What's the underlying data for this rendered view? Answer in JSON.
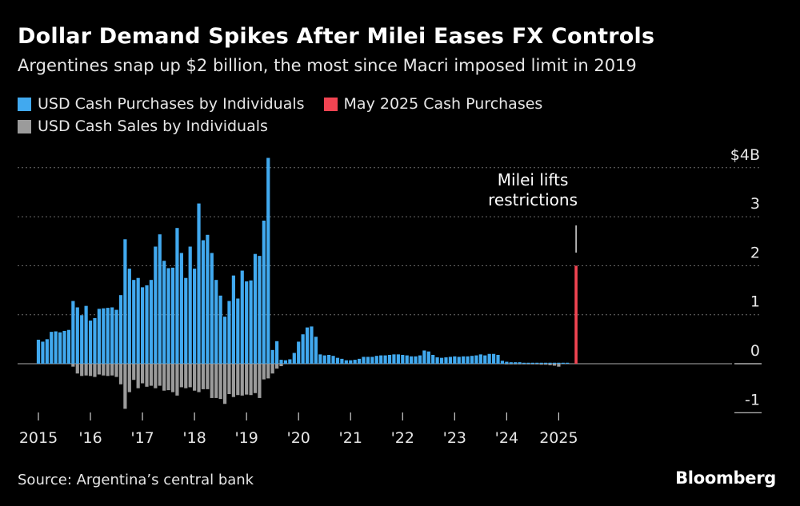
{
  "chart_data": {
    "type": "bar",
    "title": "Dollar Demand Spikes After Milei Eases FX Controls",
    "subtitle": "Argentines snap up $2 billion, the most since Macri imposed limit in 2019",
    "ylim": [
      -1,
      4
    ],
    "y_ticks": [
      {
        "value": 4,
        "label": "$4B"
      },
      {
        "value": 3,
        "label": "3"
      },
      {
        "value": 2,
        "label": "2"
      },
      {
        "value": 1,
        "label": "1"
      },
      {
        "value": 0,
        "label": "0"
      },
      {
        "value": -1,
        "label": "-1"
      }
    ],
    "x_ticks": [
      {
        "date": "2015-01",
        "label": "2015"
      },
      {
        "date": "2016-01",
        "label": "'16"
      },
      {
        "date": "2017-01",
        "label": "'17"
      },
      {
        "date": "2018-01",
        "label": "'18"
      },
      {
        "date": "2019-01",
        "label": "'19"
      },
      {
        "date": "2020-01",
        "label": "'20"
      },
      {
        "date": "2021-01",
        "label": "'21"
      },
      {
        "date": "2022-01",
        "label": "'22"
      },
      {
        "date": "2023-01",
        "label": "'23"
      },
      {
        "date": "2024-01",
        "label": "'24"
      },
      {
        "date": "2025-01",
        "label": "2025"
      }
    ],
    "legend_placement": "top-left",
    "grid": true,
    "start_date": "2015-01",
    "series": [
      {
        "name": "USD Cash Purchases by Individuals",
        "color": "#41a9ef",
        "values": [
          0.49,
          0.45,
          0.5,
          0.65,
          0.66,
          0.64,
          0.67,
          0.69,
          1.28,
          1.15,
          0.99,
          1.18,
          0.88,
          0.93,
          1.12,
          1.13,
          1.14,
          1.15,
          1.1,
          1.4,
          2.54,
          1.94,
          1.71,
          1.75,
          1.56,
          1.6,
          1.71,
          2.39,
          2.64,
          2.1,
          1.95,
          1.96,
          2.77,
          2.26,
          1.75,
          2.39,
          1.94,
          3.27,
          2.52,
          2.63,
          2.26,
          1.71,
          1.39,
          0.96,
          1.28,
          1.8,
          1.33,
          1.9,
          1.68,
          1.7,
          2.24,
          2.2,
          2.92,
          4.2,
          0.28,
          0.46,
          0.08,
          0.07,
          0.09,
          0.22,
          0.45,
          0.6,
          0.74,
          0.76,
          0.55,
          0.19,
          0.17,
          0.18,
          0.16,
          0.12,
          0.1,
          0.07,
          0.07,
          0.08,
          0.1,
          0.14,
          0.14,
          0.14,
          0.16,
          0.17,
          0.17,
          0.18,
          0.19,
          0.19,
          0.18,
          0.17,
          0.15,
          0.15,
          0.17,
          0.27,
          0.25,
          0.18,
          0.13,
          0.12,
          0.13,
          0.14,
          0.15,
          0.14,
          0.15,
          0.15,
          0.16,
          0.17,
          0.19,
          0.17,
          0.2,
          0.2,
          0.18,
          0.06,
          0.04,
          0.03,
          0.03,
          0.03,
          0.02,
          0.02,
          0.02,
          0.02,
          0.02,
          0.02,
          0.02,
          0.02,
          0.02,
          0.02,
          0.02
        ]
      },
      {
        "name": "USD Cash Sales by Individuals",
        "color": "#9b9b9b",
        "values": [
          0,
          0,
          0,
          0,
          0,
          0,
          0,
          0,
          -0.06,
          -0.2,
          -0.25,
          -0.24,
          -0.25,
          -0.27,
          -0.22,
          -0.24,
          -0.25,
          -0.24,
          -0.27,
          -0.42,
          -0.92,
          -0.58,
          -0.33,
          -0.5,
          -0.4,
          -0.47,
          -0.45,
          -0.5,
          -0.45,
          -0.55,
          -0.54,
          -0.58,
          -0.65,
          -0.48,
          -0.5,
          -0.48,
          -0.55,
          -0.58,
          -0.52,
          -0.52,
          -0.7,
          -0.7,
          -0.72,
          -0.82,
          -0.62,
          -0.68,
          -0.64,
          -0.65,
          -0.63,
          -0.64,
          -0.6,
          -0.7,
          -0.32,
          -0.3,
          -0.2,
          -0.1,
          -0.05,
          0,
          0,
          0,
          0,
          0,
          0,
          0,
          0,
          0,
          0,
          0,
          0,
          0,
          0,
          0,
          0,
          0,
          0,
          0,
          0,
          0,
          0,
          0,
          0,
          0,
          0,
          0,
          0,
          0,
          0,
          0,
          0,
          0,
          0,
          0,
          0,
          0,
          0,
          0,
          0,
          0,
          0,
          0,
          0,
          0,
          0,
          0,
          0,
          0,
          0,
          0,
          -0.01,
          -0.01,
          -0.01,
          -0.01,
          -0.01,
          -0.01,
          -0.01,
          -0.01,
          -0.02,
          -0.02,
          -0.03,
          -0.04,
          -0.06
        ]
      },
      {
        "name": "May 2025 Cash Purchases",
        "color": "#f14452",
        "date": "2025-05",
        "values": [
          2.0
        ]
      }
    ],
    "annotation": {
      "label": "Milei lifts restrictions",
      "lines": [
        "Milei lifts",
        "restrictions"
      ],
      "date": "2025-05"
    }
  },
  "source": "Source: Argentina’s central bank",
  "brand": "Bloomberg"
}
